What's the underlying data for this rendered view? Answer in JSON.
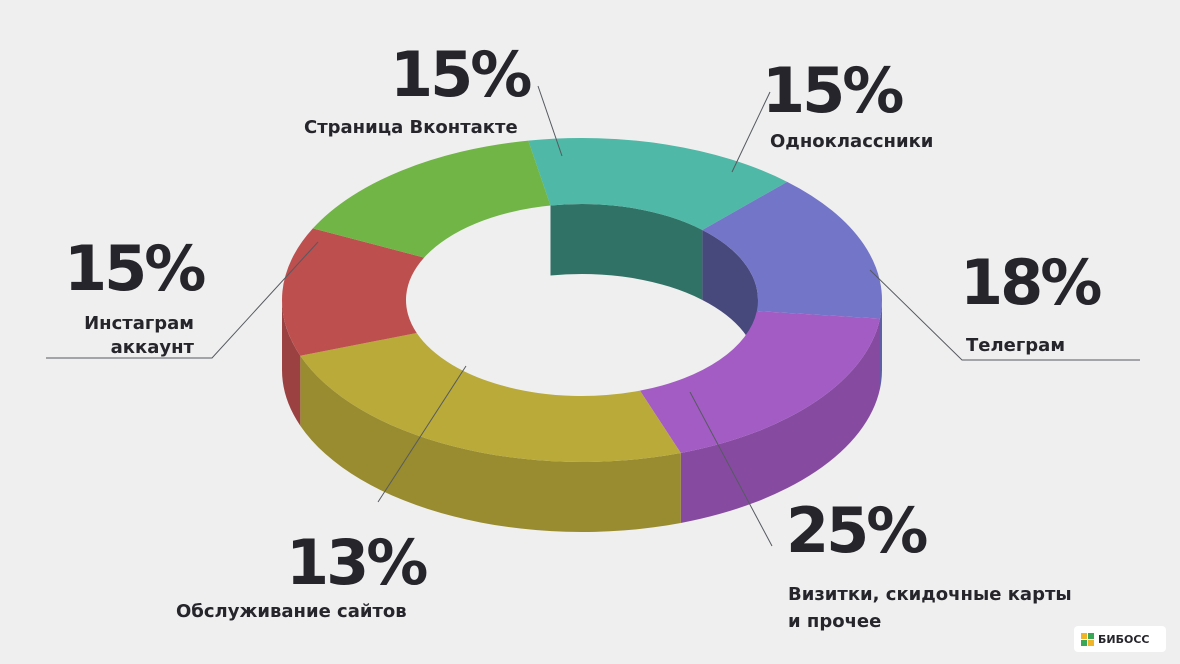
{
  "chart_data": {
    "type": "pie",
    "slices": [
      {
        "label": "Страница Вконтакте",
        "value": 15,
        "pct_text": "15%",
        "color": "#4fb8a6"
      },
      {
        "label": "Одноклассники",
        "value": 15,
        "pct_text": "15%",
        "color": "#7275c8"
      },
      {
        "label": "Телеграм",
        "value": 18,
        "pct_text": "18%",
        "color": "#a35cc4"
      },
      {
        "label": "Визитки, скидочные карты и прочее",
        "label_lines": [
          "Визитки, скидочные карты",
          "и прочее"
        ],
        "value": 25,
        "pct_text": "25%",
        "color": "#b9aa3a"
      },
      {
        "label": "Обслуживание сайтов",
        "value": 13,
        "pct_text": "13%",
        "color": "#bd4f4f"
      },
      {
        "label": "Инстаграм аккаунт",
        "label_lines": [
          "Инстаграм",
          "аккаунт"
        ],
        "value": 15,
        "pct_text": "15%",
        "color": "#70b546"
      }
    ]
  },
  "logo": {
    "text": "БИБОСС"
  }
}
